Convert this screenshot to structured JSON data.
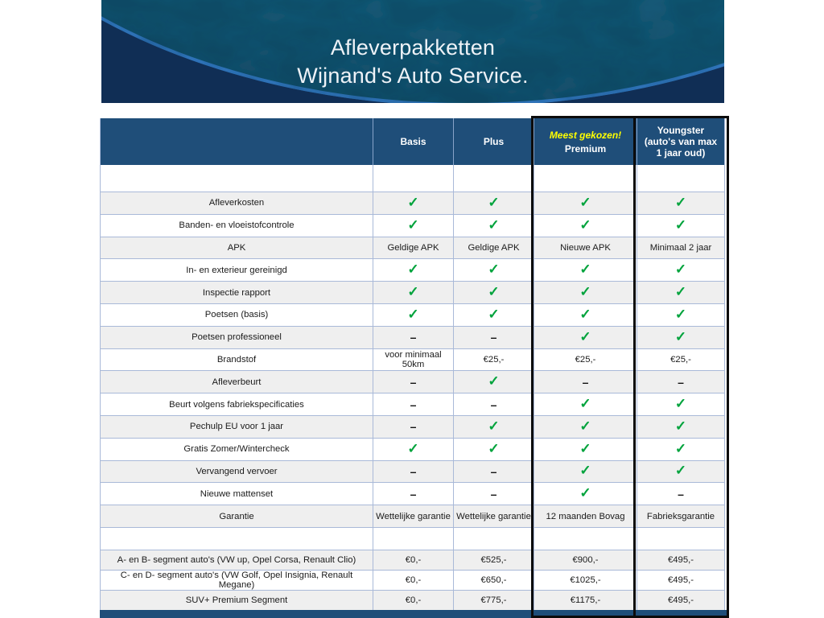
{
  "banner": {
    "title_line1": "Afleverpakketten",
    "title_line2": "Wijnand's Auto Service."
  },
  "table": {
    "header": {
      "basis": "Basis",
      "plus": "Plus",
      "premium_badge": "Meest gekozen!",
      "premium": "Premium",
      "youngster": "Youngster (auto's van max 1 jaar oud)"
    },
    "symbols": {
      "check": "✓",
      "dash": "–"
    },
    "features": [
      {
        "label": "Afleverkosten",
        "basis": "check",
        "plus": "check",
        "premium": "check",
        "youngster": "check"
      },
      {
        "label": "Banden- en vloeistofcontrole",
        "basis": "check",
        "plus": "check",
        "premium": "check",
        "youngster": "check"
      },
      {
        "label": "APK",
        "basis": "Geldige APK",
        "plus": "Geldige APK",
        "premium": "Nieuwe APK",
        "youngster": "Minimaal 2 jaar"
      },
      {
        "label": "In- en exterieur gereinigd",
        "basis": "check",
        "plus": "check",
        "premium": "check",
        "youngster": "check"
      },
      {
        "label": "Inspectie rapport",
        "basis": "check",
        "plus": "check",
        "premium": "check",
        "youngster": "check"
      },
      {
        "label": "Poetsen (basis)",
        "basis": "check",
        "plus": "check",
        "premium": "check",
        "youngster": "check"
      },
      {
        "label": "Poetsen professioneel",
        "basis": "dash",
        "plus": "dash",
        "premium": "check",
        "youngster": "check"
      },
      {
        "label": "Brandstof",
        "basis": "voor minimaal 50km",
        "plus": "€25,-",
        "premium": "€25,-",
        "youngster": "€25,-"
      },
      {
        "label": "Afleverbeurt",
        "basis": "dash",
        "plus": "check",
        "premium": "dash",
        "youngster": "dash"
      },
      {
        "label": "Beurt volgens fabriekspecificaties",
        "basis": "dash",
        "plus": "dash",
        "premium": "check",
        "youngster": "check"
      },
      {
        "label": "Pechulp EU voor 1 jaar",
        "basis": "dash",
        "plus": "check",
        "premium": "check",
        "youngster": "check"
      },
      {
        "label": "Gratis Zomer/Wintercheck",
        "basis": "check",
        "plus": "check",
        "premium": "check",
        "youngster": "check"
      },
      {
        "label": "Vervangend vervoer",
        "basis": "dash",
        "plus": "dash",
        "premium": "check",
        "youngster": "check"
      },
      {
        "label": "Nieuwe mattenset",
        "basis": "dash",
        "plus": "dash",
        "premium": "check",
        "youngster": "dash"
      },
      {
        "label": "Garantie",
        "basis": "Wettelijke garantie",
        "plus": "Wettelijke garantie",
        "premium": "12 maanden Bovag",
        "youngster": "Fabrieksgarantie"
      }
    ],
    "prices": [
      {
        "label": "A- en B- segment auto's (VW up, Opel Corsa, Renault Clio)",
        "basis": "€0,-",
        "plus": "€525,-",
        "premium": "€900,-",
        "youngster": "€495,-"
      },
      {
        "label": "C- en D- segment auto's (VW Golf, Opel Insignia, Renault Megane)",
        "basis": "€0,-",
        "plus": "€650,-",
        "premium": "€1025,-",
        "youngster": "€495,-"
      },
      {
        "label": "SUV+ Premium Segment",
        "basis": "€0,-",
        "plus": "€775,-",
        "premium": "€1175,-",
        "youngster": "€495,-"
      }
    ]
  },
  "colors": {
    "header_navy": "#1F4E79",
    "check_green": "#00A33C",
    "badge_yellow": "#FFFF00",
    "stripe_gray": "#EFEFEF",
    "grid_blue": "#A9B9D8",
    "banner_navy": "#102E55",
    "banner_teal_light": "#2E87AA",
    "banner_teal_mid": "#236F90",
    "banner_teal_dark": "#17506E",
    "arc_blue": "#3B86D8"
  }
}
